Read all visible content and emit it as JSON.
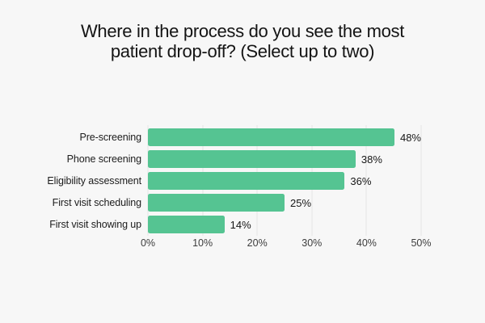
{
  "chart_data": {
    "type": "bar",
    "orientation": "horizontal",
    "title": "Where in the process do you see the most patient drop-off? (Select up to two)",
    "title_lines": [
      "Where in the process do you see the most",
      "patient drop-off? (Select up to two)"
    ],
    "categories": [
      "Pre-screening",
      "Phone screening",
      "Eligibility assessment",
      "First visit scheduling",
      "First visit showing up"
    ],
    "values": [
      48,
      38,
      36,
      25,
      14
    ],
    "value_labels": [
      "48%",
      "38%",
      "36%",
      "25%",
      "14%"
    ],
    "x_ticks": [
      "0%",
      "10%",
      "20%",
      "30%",
      "40%",
      "50%"
    ],
    "xlim": [
      0,
      50
    ],
    "xlabel": "",
    "ylabel": "",
    "grid": "vertical",
    "legend": "none",
    "bar_color": "#55c492",
    "background_color": "#f7f7f7",
    "gridline_color": "#e5e5e5",
    "text_color": "#141414"
  }
}
